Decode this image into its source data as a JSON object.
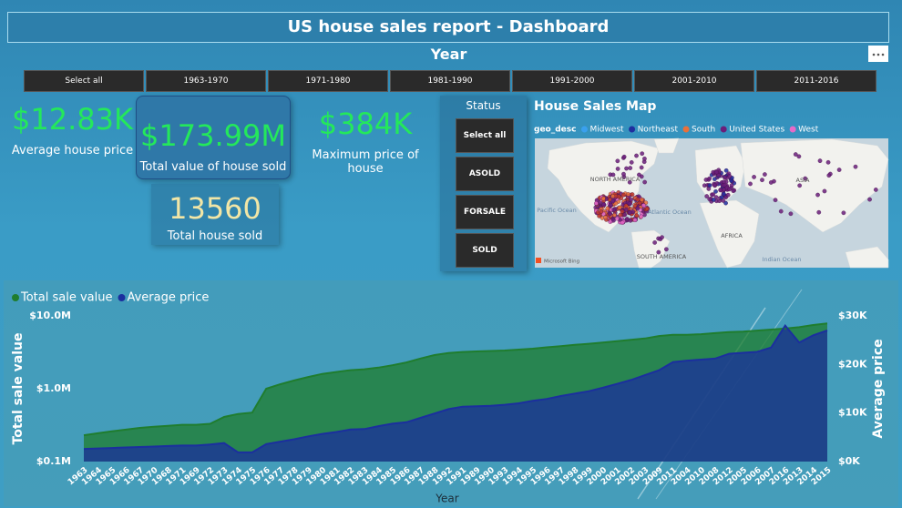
{
  "header": {
    "title": "US house sales report - Dashboard"
  },
  "year_slicer": {
    "label": "Year",
    "options": [
      "Select all",
      "1963-1970",
      "1971-1980",
      "1981-1990",
      "1991-2000",
      "2001-2010",
      "2011-2016"
    ]
  },
  "cards": [
    {
      "value": "$12.83K",
      "label": "Average house price"
    },
    {
      "value": "$173.99M",
      "label": "Total value of house sold"
    },
    {
      "value": "$384K",
      "label": "Maximum price of house"
    },
    {
      "value": "13560",
      "label": "Total house sold"
    }
  ],
  "status_slicer": {
    "label": "Status",
    "options": [
      "Select all",
      "ASOLD",
      "FORSALE",
      "SOLD"
    ]
  },
  "map": {
    "title": "House Sales Map",
    "legend_title": "geo_desc",
    "legend": [
      {
        "name": "Midwest",
        "color": "#3aa0ee"
      },
      {
        "name": "Northeast",
        "color": "#1f2e9e"
      },
      {
        "name": "South",
        "color": "#e8703a"
      },
      {
        "name": "United States",
        "color": "#6b1f7a"
      },
      {
        "name": "West",
        "color": "#e66ac8"
      }
    ],
    "labels": [
      "NORTH AMERICA",
      "Pacific Ocean",
      "Atlantic Ocean",
      "SOUTH AMERICA",
      "AFRICA",
      "ASIA",
      "Indian Ocean",
      "Microsoft Bing"
    ]
  },
  "chart_data": {
    "type": "area",
    "legend": "top-left",
    "grid": false,
    "xlabel": "Year",
    "ylabel": "Total sale value",
    "y2label": "Average price",
    "y_scale": "log",
    "categories": [
      "1963",
      "1964",
      "1965",
      "1966",
      "1967",
      "1970",
      "1968",
      "1971",
      "1969",
      "1972",
      "1973",
      "1974",
      "1975",
      "1976",
      "1977",
      "1978",
      "1979",
      "1980",
      "1981",
      "1982",
      "1983",
      "1984",
      "1985",
      "1986",
      "1987",
      "1988",
      "1992",
      "1991",
      "1989",
      "1990",
      "1993",
      "1994",
      "1995",
      "1996",
      "1997",
      "1998",
      "1999",
      "2000",
      "2001",
      "2002",
      "2003",
      "2009",
      "2011",
      "2004",
      "2010",
      "2008",
      "2012",
      "2005",
      "2006",
      "2007",
      "2016",
      "2013",
      "2014",
      "2015"
    ],
    "series": [
      {
        "name": "Total sale value",
        "color": "#1f7d2e",
        "axis": "y",
        "values": [
          230000,
          245000,
          260000,
          275000,
          290000,
          300000,
          310000,
          320000,
          320000,
          330000,
          410000,
          450000,
          470000,
          1000000,
          1150000,
          1300000,
          1450000,
          1600000,
          1700000,
          1800000,
          1850000,
          1950000,
          2100000,
          2300000,
          2600000,
          2900000,
          3100000,
          3200000,
          3250000,
          3300000,
          3350000,
          3450000,
          3550000,
          3700000,
          3850000,
          4000000,
          4150000,
          4300000,
          4500000,
          4700000,
          4900000,
          5300000,
          5500000,
          5500000,
          5600000,
          5800000,
          6000000,
          6100000,
          6300000,
          6500000,
          6700000,
          7000000,
          7500000,
          7900000
        ]
      },
      {
        "name": "Average price",
        "color": "#1b2f9e",
        "axis": "y2",
        "values": [
          2600,
          2700,
          2800,
          2900,
          3000,
          3100,
          3200,
          3300,
          3300,
          3500,
          3800,
          1900,
          1900,
          3600,
          4100,
          4600,
          5200,
          5700,
          6100,
          6600,
          6700,
          7300,
          7800,
          8100,
          9000,
          9900,
          10800,
          11300,
          11400,
          11500,
          11700,
          12000,
          12500,
          12900,
          13500,
          14000,
          14500,
          15200,
          16000,
          16800,
          17800,
          18800,
          20500,
          20800,
          21000,
          21200,
          22200,
          22400,
          22600,
          23500,
          28000,
          24500,
          26000,
          27000
        ]
      }
    ],
    "ylim": [
      100000,
      10000000
    ],
    "yticks": [
      {
        "value": 100000,
        "label": "$0.1M"
      },
      {
        "value": 1000000,
        "label": "$1.0M"
      },
      {
        "value": 10000000,
        "label": "$10.0M"
      }
    ],
    "y2lim": [
      0,
      30000
    ],
    "y2ticks": [
      {
        "value": 0,
        "label": "$0K"
      },
      {
        "value": 10000,
        "label": "$10K"
      },
      {
        "value": 20000,
        "label": "$20K"
      },
      {
        "value": 30000,
        "label": "$30K"
      }
    ]
  }
}
